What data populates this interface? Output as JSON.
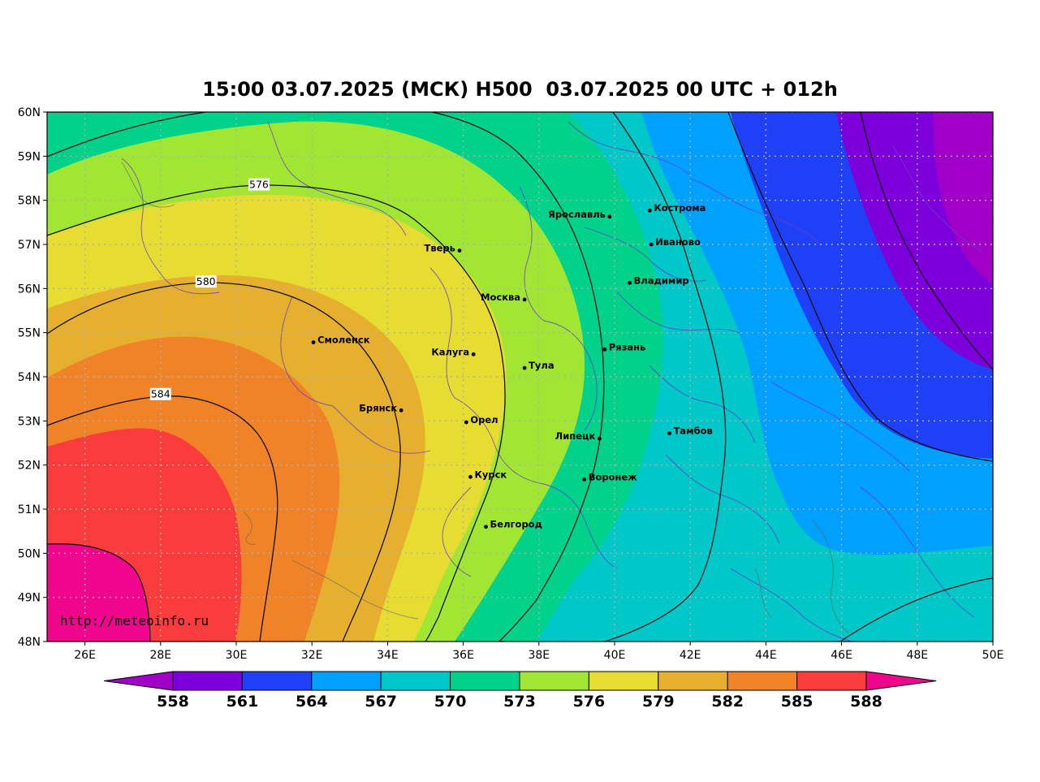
{
  "title": "15:00 03.07.2025 (МСК) H500  03.07.2025 00 UTC + 012h",
  "watermark": "http://meteoinfo.ru",
  "map": {
    "lon_range": [
      25,
      50
    ],
    "lat_range": [
      48,
      60
    ],
    "x_ticks": [
      {
        "value": 26,
        "label": "26E"
      },
      {
        "value": 28,
        "label": "28E"
      },
      {
        "value": 30,
        "label": "30E"
      },
      {
        "value": 32,
        "label": "32E"
      },
      {
        "value": 34,
        "label": "34E"
      },
      {
        "value": 36,
        "label": "36E"
      },
      {
        "value": 38,
        "label": "38E"
      },
      {
        "value": 40,
        "label": "40E"
      },
      {
        "value": 42,
        "label": "42E"
      },
      {
        "value": 44,
        "label": "44E"
      },
      {
        "value": 46,
        "label": "46E"
      },
      {
        "value": 48,
        "label": "48E"
      },
      {
        "value": 50,
        "label": "50E"
      }
    ],
    "y_ticks": [
      {
        "value": 60,
        "label": "60N"
      },
      {
        "value": 59,
        "label": "59N"
      },
      {
        "value": 58,
        "label": "58N"
      },
      {
        "value": 57,
        "label": "57N"
      },
      {
        "value": 56,
        "label": "56N"
      },
      {
        "value": 55,
        "label": "55N"
      },
      {
        "value": 54,
        "label": "54N"
      },
      {
        "value": 53,
        "label": "53N"
      },
      {
        "value": 52,
        "label": "52N"
      },
      {
        "value": 51,
        "label": "51N"
      },
      {
        "value": 50,
        "label": "50N"
      },
      {
        "value": 49,
        "label": "49N"
      },
      {
        "value": 48,
        "label": "48N"
      }
    ],
    "grid": "dotted",
    "contour_labels": [
      {
        "value": "576",
        "lon": 30.6,
        "lat": 58.35
      },
      {
        "value": "580",
        "lon": 29.2,
        "lat": 56.15
      },
      {
        "value": "584",
        "lon": 28.0,
        "lat": 53.6
      }
    ],
    "cities": [
      {
        "name": "Кострома",
        "lon": 40.93,
        "lat": 57.77,
        "side": "right"
      },
      {
        "name": "Ярославль",
        "lon": 39.87,
        "lat": 57.63,
        "side": "left"
      },
      {
        "name": "Иваново",
        "lon": 40.97,
        "lat": 57.0,
        "side": "right"
      },
      {
        "name": "Тверь",
        "lon": 35.9,
        "lat": 56.86,
        "side": "left"
      },
      {
        "name": "Владимир",
        "lon": 40.4,
        "lat": 56.13,
        "side": "right"
      },
      {
        "name": "Москва",
        "lon": 37.62,
        "lat": 55.75,
        "side": "left"
      },
      {
        "name": "Смоленск",
        "lon": 32.04,
        "lat": 54.78,
        "side": "right"
      },
      {
        "name": "Рязань",
        "lon": 39.74,
        "lat": 54.62,
        "side": "right"
      },
      {
        "name": "Калуга",
        "lon": 36.27,
        "lat": 54.51,
        "side": "left"
      },
      {
        "name": "Тула",
        "lon": 37.62,
        "lat": 54.2,
        "side": "right"
      },
      {
        "name": "Брянск",
        "lon": 34.36,
        "lat": 53.24,
        "side": "left"
      },
      {
        "name": "Орел",
        "lon": 36.08,
        "lat": 52.97,
        "side": "right"
      },
      {
        "name": "Тамбов",
        "lon": 41.45,
        "lat": 52.72,
        "side": "right"
      },
      {
        "name": "Липецк",
        "lon": 39.6,
        "lat": 52.6,
        "side": "left"
      },
      {
        "name": "Курск",
        "lon": 36.19,
        "lat": 51.73,
        "side": "right"
      },
      {
        "name": "Воронеж",
        "lon": 39.2,
        "lat": 51.67,
        "side": "right"
      },
      {
        "name": "Белгород",
        "lon": 36.6,
        "lat": 50.6,
        "side": "right"
      }
    ]
  },
  "colorbar": {
    "labels": [
      "558",
      "561",
      "564",
      "567",
      "570",
      "573",
      "576",
      "579",
      "582",
      "585",
      "588"
    ],
    "below_color": "#a000c8",
    "above_color": "#f0068c",
    "colors": [
      "#7d00dc",
      "#2040f8",
      "#00a0ff",
      "#00c8c8",
      "#00d28c",
      "#a0e632",
      "#e6dc32",
      "#e6af2d",
      "#f08228",
      "#fa3c3c"
    ]
  },
  "colors": {
    "z_lt558": "#a000c8",
    "z_558": "#7d00dc",
    "z_561": "#2040f8",
    "z_564": "#00a0ff",
    "z_567": "#00c8c8",
    "z_570": "#00d28c",
    "z_573": "#a0e632",
    "z_576": "#e6dc32",
    "z_579": "#e6af2d",
    "z_582": "#f08228",
    "z_585": "#fa3c3c",
    "z_gt588": "#f0068c"
  }
}
